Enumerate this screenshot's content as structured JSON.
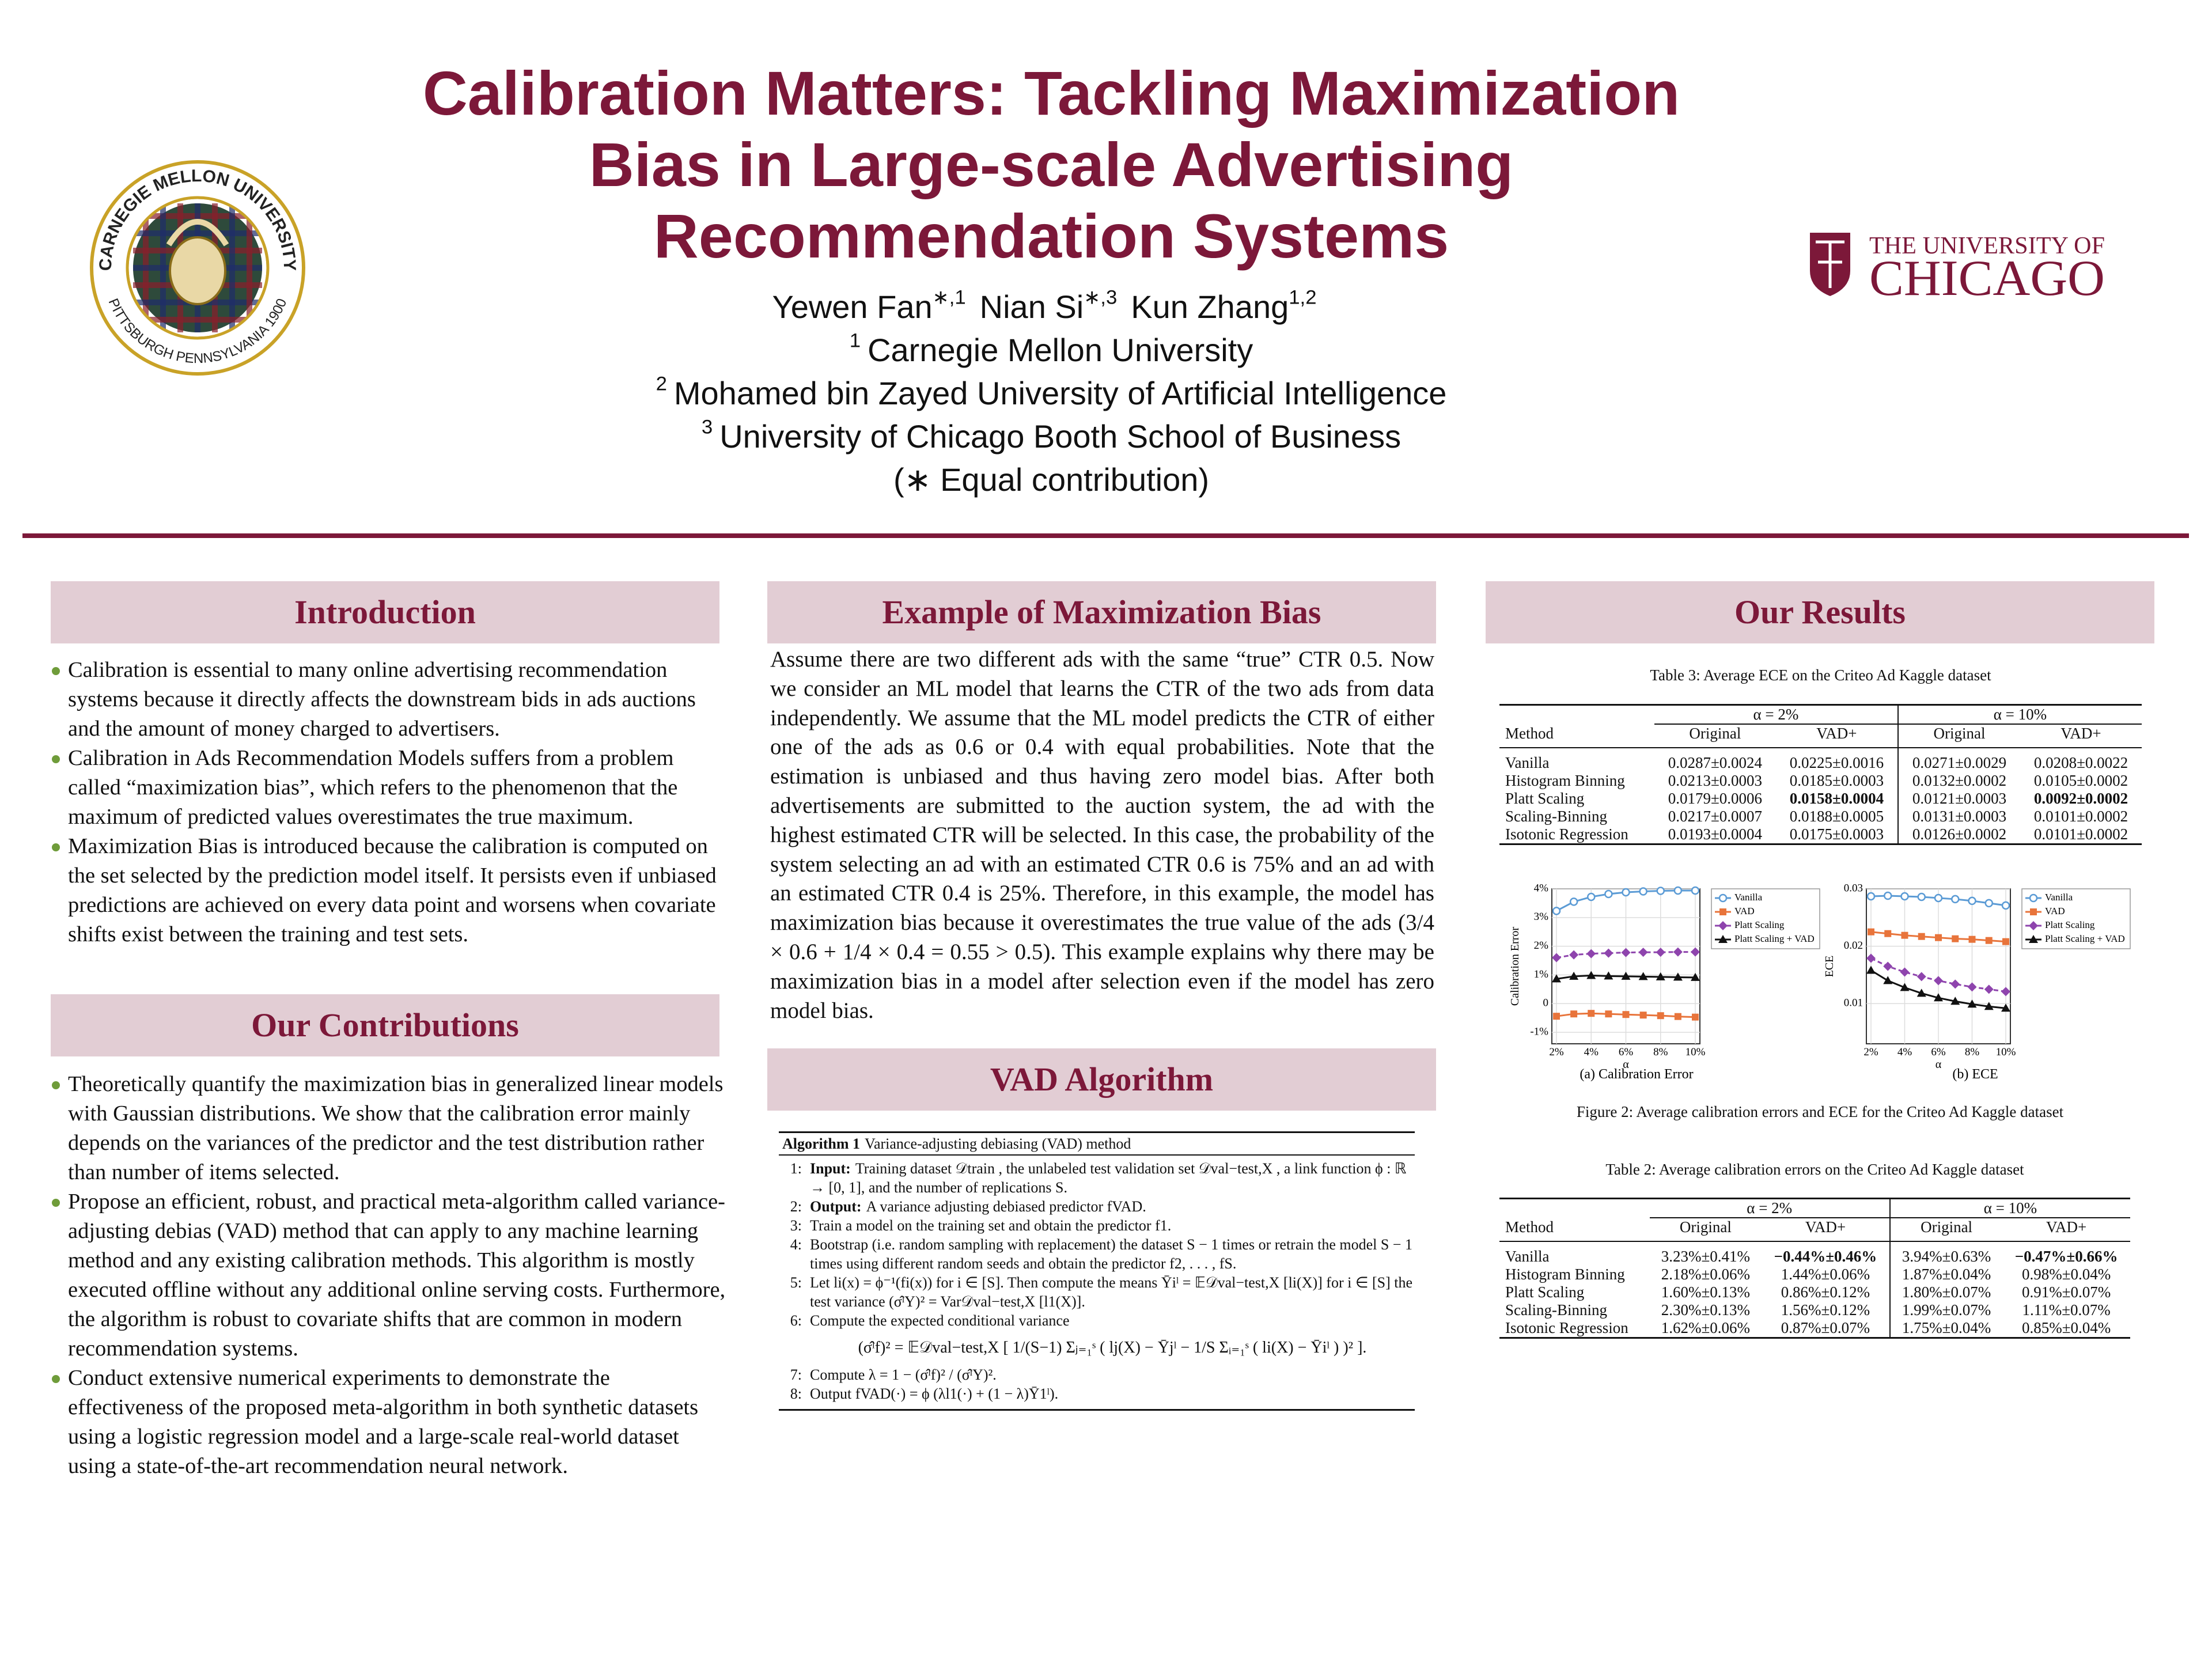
{
  "header": {
    "title": [
      "Calibration Matters: Tackling Maximization",
      "Bias in Large-scale Advertising",
      "Recommendation Systems"
    ],
    "authors": [
      {
        "name": "Yewen Fan",
        "sup": "∗,1"
      },
      {
        "name": "Nian Si",
        "sup": "∗,3"
      },
      {
        "name": "Kun Zhang",
        "sup": "1,2"
      }
    ],
    "affiliations": [
      {
        "sup": "1",
        "text": "Carnegie Mellon University"
      },
      {
        "sup": "2",
        "text": "Mohamed bin Zayed University of Artificial Intelligence"
      },
      {
        "sup": "3",
        "text": "University of Chicago Booth School of Business"
      }
    ],
    "note": "(∗ Equal contribution)",
    "logos": {
      "cmu_top": "CARNEGIE MELLON UNIVERSITY",
      "cmu_bottom": "PITTSBURGH PENNSYLVANIA 1900",
      "uchicago_top": "THE UNIVERSITY OF",
      "uchicago_bottom": "CHICAGO"
    }
  },
  "introduction": {
    "heading": "Introduction",
    "bullets": [
      "Calibration is essential to many online advertising recommendation systems because it directly affects the downstream bids in ads auctions and the amount of money charged to advertisers.",
      "Calibration in Ads Recommendation Models suffers from a problem called “maximization bias”, which refers to the phenomenon that the maximum of predicted values overestimates the true maximum.",
      "Maximization Bias is introduced because the calibration is computed on the set selected by the prediction model itself. It persists even if unbiased predictions are achieved on every data point and worsens when covariate shifts exist between the training and test sets."
    ]
  },
  "contributions": {
    "heading": "Our Contributions",
    "bullets": [
      "Theoretically quantify the maximization bias in generalized linear models with Gaussian distributions. We show that the calibration error mainly depends on the variances of the predictor and the test distribution rather than number of items selected.",
      "Propose an efficient, robust, and practical meta-algorithm called variance-adjusting debias (VAD) method that can apply to any machine learning method and any existing calibration methods. This algorithm is mostly executed offline without any additional online serving costs. Furthermore, the algorithm is robust to covariate shifts that are common in modern recommendation systems.",
      "Conduct extensive numerical experiments to demonstrate the effectiveness of the proposed meta-algorithm in both synthetic datasets using a logistic regression model and a large-scale real-world dataset using a state-of-the-art recommendation neural network."
    ]
  },
  "example": {
    "heading": "Example of Maximization Bias",
    "text": "Assume there are two different ads with the same “true” CTR 0.5. Now we consider an ML model that learns the CTR of the two ads from data independently.  We assume that the ML model predicts the CTR of either one of the ads as 0.6 or 0.4 with equal probabilities.  Note that the estimation is unbiased and thus having zero model bias. After both advertisements are submitted to the auction system, the ad with the highest estimated CTR will be selected. In this case, the probability of the system selecting an ad with an estimated CTR 0.6 is 75% and an ad with an estimated CTR 0.4 is 25%. Therefore, in this example, the model has maximization bias because it overestimates the true value of the ads (3/4 × 0.6 + 1/4 × 0.4 = 0.55 > 0.5). This example explains why there may be maximization bias in a model after selection even if the model has zero model bias."
  },
  "vad": {
    "heading": "VAD Algorithm",
    "algorithm": {
      "label": "Algorithm 1",
      "title": "Variance-adjusting debiasing (VAD) method",
      "steps": [
        {
          "num": "1:",
          "label": "Input:",
          "text": "Training dataset 𝒟train , the unlabeled test validation set 𝒟val−test,X , a link function ϕ : ℝ → [0, 1], and the number of replications S."
        },
        {
          "num": "2:",
          "label": "Output:",
          "text": "A variance adjusting debiased predictor fVAD."
        },
        {
          "num": "3:",
          "text": "Train a model on the training set and obtain the predictor f1."
        },
        {
          "num": "4:",
          "text": "Bootstrap (i.e. random sampling with replacement) the dataset S − 1 times or retrain the model S − 1 times using different random seeds and obtain the predictor f2, . . . , fS."
        },
        {
          "num": "5:",
          "text": "Let li(x) = ϕ⁻¹(fi(x)) for i ∈ [S].  Then compute the means Ȳiˡ = 𝔼𝒟val−test,X [li(X)] for i ∈ [S] the test variance (σ̂ˡY)² = Var𝒟val−test,X [l1(X)]."
        },
        {
          "num": "6:",
          "text": "Compute the expected conditional variance",
          "equation": "(σ̂ˡf)² = 𝔼𝒟val−test,X [ 1/(S−1) Σⱼ₌₁ˢ ( lj(X) − Ȳjˡ − 1/S Σᵢ₌₁ˢ ( li(X) − Ȳiˡ ) )² ]."
        },
        {
          "num": "7:",
          "text": "Compute λ = 1 − (σ̂ˡf)² / (σ̂ˡY)²."
        },
        {
          "num": "8:",
          "text": "Output fVAD(·) = ϕ (λl1(·) + (1 − λ)Ȳ1ˡ)."
        }
      ]
    }
  },
  "results": {
    "heading": "Our Results",
    "table3": {
      "caption": "Table 3: Average ECE on the Criteo Ad Kaggle dataset",
      "groups": [
        "α = 2%",
        "α = 10%"
      ],
      "columns": [
        "Method",
        "Original",
        "VAD+",
        "Original",
        "VAD+"
      ],
      "rows": [
        [
          "Vanilla",
          "0.0287±0.0024",
          "0.0225±0.0016",
          "0.0271±0.0029",
          "0.0208±0.0022"
        ],
        [
          "Histogram Binning",
          "0.0213±0.0003",
          "0.0185±0.0003",
          "0.0132±0.0002",
          "0.0105±0.0002"
        ],
        [
          "Platt Scaling",
          "0.0179±0.0006",
          "0.0158±0.0004",
          "0.0121±0.0003",
          "0.0092±0.0002"
        ],
        [
          "Scaling-Binning",
          "0.0217±0.0007",
          "0.0188±0.0005",
          "0.0131±0.0003",
          "0.0101±0.0002"
        ],
        [
          "Isotonic Regression",
          "0.0193±0.0004",
          "0.0175±0.0003",
          "0.0126±0.0002",
          "0.0101±0.0002"
        ]
      ],
      "bold_cells": [
        [
          2,
          2
        ],
        [
          2,
          4
        ]
      ]
    },
    "figure2": {
      "caption": "Figure 2: Average calibration errors and ECE for the Criteo Ad Kaggle dataset",
      "charts": [
        {
          "type": "line",
          "caption": "(a) Calibration Error",
          "xlabel": "α",
          "ylabel": "Calibration Error",
          "grid": true,
          "legend": "right",
          "x": [
            2,
            3,
            4,
            5,
            6,
            7,
            8,
            9,
            10
          ],
          "xlim": [
            2,
            10
          ],
          "xticks": [
            {
              "value": 2,
              "label": "2%"
            },
            {
              "value": 4,
              "label": "4%"
            },
            {
              "value": 6,
              "label": "6%"
            },
            {
              "value": 8,
              "label": "8%"
            },
            {
              "value": 10,
              "label": "10%"
            }
          ],
          "ylim": [
            -1.4,
            4
          ],
          "yticks": [
            {
              "value": -1,
              "label": "-1%"
            },
            0,
            {
              "value": 1,
              "label": "1%"
            },
            {
              "value": 2,
              "label": "2%"
            },
            {
              "value": 3,
              "label": "3%"
            },
            {
              "value": 4,
              "label": "4%"
            }
          ],
          "series": [
            {
              "name": "Vanilla",
              "color": "#5b9bd5",
              "marker": "circle",
              "values": [
                3.23,
                3.55,
                3.72,
                3.82,
                3.88,
                3.91,
                3.93,
                3.94,
                3.94
              ]
            },
            {
              "name": "VAD",
              "color": "#e8743b",
              "marker": "square",
              "values": [
                -0.44,
                -0.36,
                -0.34,
                -0.36,
                -0.38,
                -0.4,
                -0.42,
                -0.45,
                -0.47
              ]
            },
            {
              "name": "Platt Scaling",
              "color": "#8e44ad",
              "marker": "diamond",
              "values": [
                1.6,
                1.7,
                1.74,
                1.76,
                1.78,
                1.79,
                1.79,
                1.8,
                1.8
              ]
            },
            {
              "name": "Platt Scaling + VAD",
              "color": "#111111",
              "marker": "triangle",
              "values": [
                0.86,
                0.95,
                0.98,
                0.96,
                0.95,
                0.94,
                0.93,
                0.92,
                0.91
              ]
            }
          ]
        },
        {
          "type": "line",
          "caption": "(b) ECE",
          "xlabel": "α",
          "ylabel": "ECE",
          "grid": true,
          "legend": "right",
          "x": [
            2,
            3,
            4,
            5,
            6,
            7,
            8,
            9,
            10
          ],
          "xlim": [
            2,
            10
          ],
          "xticks": [
            {
              "value": 2,
              "label": "2%"
            },
            {
              "value": 4,
              "label": "4%"
            },
            {
              "value": 6,
              "label": "6%"
            },
            {
              "value": 8,
              "label": "8%"
            },
            {
              "value": 10,
              "label": "10%"
            }
          ],
          "ylim": [
            0.003,
            0.03
          ],
          "yticks": [
            0.01,
            0.02,
            0.03
          ],
          "series": [
            {
              "name": "Vanilla",
              "color": "#5b9bd5",
              "marker": "circle",
              "values": [
                0.0287,
                0.0288,
                0.0287,
                0.0286,
                0.0284,
                0.0282,
                0.0279,
                0.0275,
                0.0271
              ]
            },
            {
              "name": "VAD",
              "color": "#e8743b",
              "marker": "square",
              "values": [
                0.0225,
                0.0222,
                0.0219,
                0.0217,
                0.0215,
                0.0213,
                0.0212,
                0.021,
                0.0208
              ]
            },
            {
              "name": "Platt Scaling",
              "color": "#8e44ad",
              "marker": "diamond",
              "values": [
                0.0179,
                0.0165,
                0.0155,
                0.0147,
                0.014,
                0.0134,
                0.0129,
                0.0125,
                0.0121
              ]
            },
            {
              "name": "Platt Scaling + VAD",
              "color": "#111111",
              "marker": "triangle",
              "values": [
                0.0158,
                0.014,
                0.0128,
                0.0118,
                0.011,
                0.0104,
                0.0099,
                0.0095,
                0.0092
              ]
            }
          ]
        }
      ]
    },
    "table2": {
      "caption": "Table 2: Average calibration errors on the Criteo Ad Kaggle dataset",
      "groups": [
        "α = 2%",
        "α = 10%"
      ],
      "columns": [
        "Method",
        "Original",
        "VAD+",
        "Original",
        "VAD+"
      ],
      "rows": [
        [
          "Vanilla",
          "3.23%±0.41%",
          "−0.44%±0.46%",
          "3.94%±0.63%",
          "−0.47%±0.66%"
        ],
        [
          "Histogram Binning",
          "2.18%±0.06%",
          "1.44%±0.06%",
          "1.87%±0.04%",
          "0.98%±0.04%"
        ],
        [
          "Platt Scaling",
          "1.60%±0.13%",
          "0.86%±0.12%",
          "1.80%±0.07%",
          "0.91%±0.07%"
        ],
        [
          "Scaling-Binning",
          "2.30%±0.13%",
          "1.56%±0.12%",
          "1.99%±0.07%",
          "1.11%±0.07%"
        ],
        [
          "Isotonic Regression",
          "1.62%±0.06%",
          "0.87%±0.07%",
          "1.75%±0.04%",
          "0.85%±0.04%"
        ]
      ],
      "bold_cells": [
        [
          0,
          2
        ],
        [
          0,
          4
        ]
      ]
    }
  }
}
